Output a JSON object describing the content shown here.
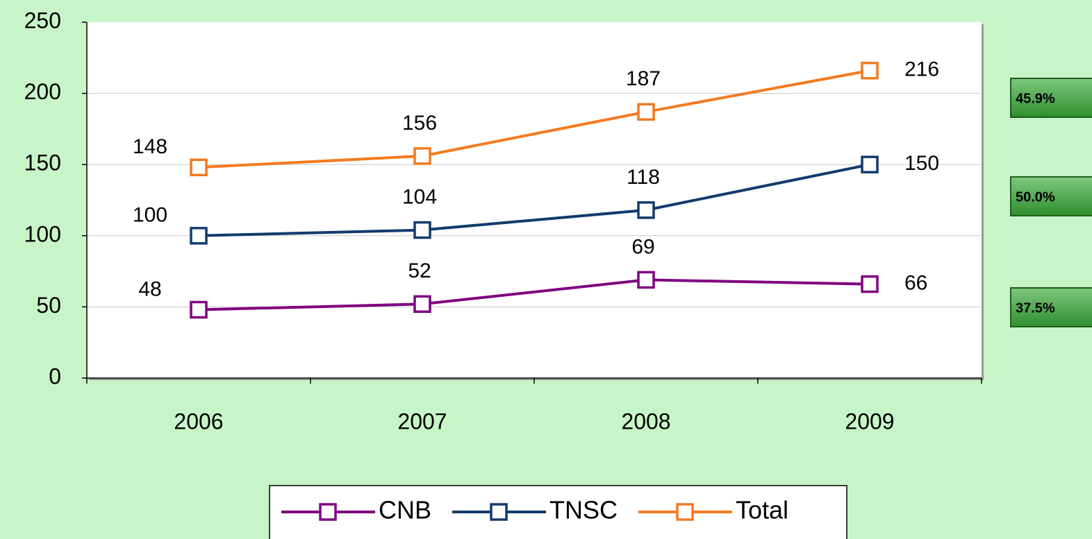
{
  "chart_data": {
    "type": "line",
    "categories": [
      "2006",
      "2007",
      "2008",
      "2009"
    ],
    "series": [
      {
        "name": "CNB",
        "color": "#800080",
        "values": [
          48,
          52,
          69,
          66
        ]
      },
      {
        "name": "TNSC",
        "color": "#123c6b",
        "values": [
          100,
          104,
          118,
          150
        ]
      },
      {
        "name": "Total",
        "color": "#f47a20",
        "values": [
          148,
          156,
          187,
          216
        ]
      }
    ],
    "ylim": [
      0,
      250
    ],
    "yticks": [
      0,
      50,
      100,
      150,
      200,
      250
    ],
    "grid": true,
    "legend": "bottom",
    "annotations": [
      "45.9%",
      "50.0%",
      "37.5%"
    ]
  }
}
